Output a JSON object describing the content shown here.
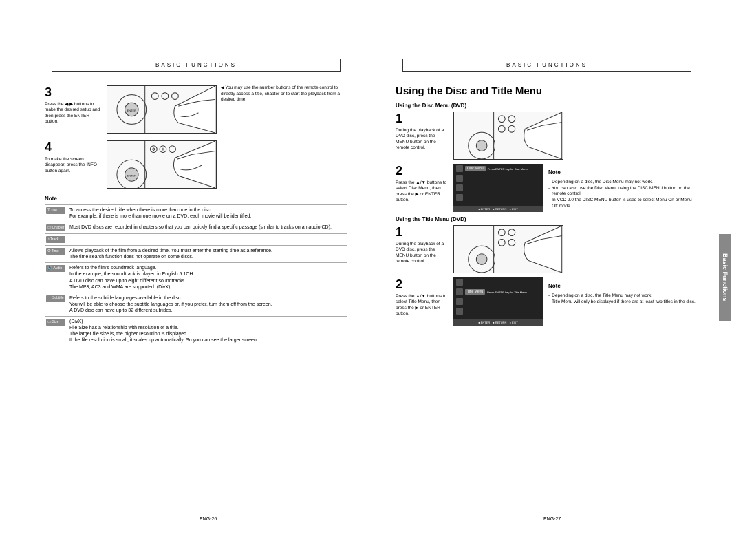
{
  "header": "BASIC FUNCTIONS",
  "sideTab": "Basic Functions",
  "pageLeft": "ENG-26",
  "pageRight": "ENG-27",
  "leftPage": {
    "step3": {
      "num": "3",
      "text": "Press the ◀/▶ buttons to make the desired setup and then press the ENTER button."
    },
    "step3note": "You may use the number buttons of the remote control to directly access a title, chapter or to start the playback from a desired time.",
    "step4": {
      "num": "4",
      "text": "To make the screen disappear, press the INFO button again."
    },
    "noteLabel": "Note",
    "defs": [
      {
        "icon": "Title",
        "glyph": "T",
        "text": "To access the desired title when there is more than one in the disc.\nFor example, if there is more than one movie on a DVD, each movie will be identified."
      },
      {
        "icon": "Chapter",
        "glyph": "▭",
        "text": "Most DVD discs are recorded in chapters so that you can quickly find a specific passage (similar to tracks on an audio CD)."
      },
      {
        "icon": "Track",
        "glyph": "♪",
        "text": ""
      },
      {
        "icon": "Time",
        "glyph": "⏱",
        "text": "Allows playback of the film from a desired time. You must enter the starting time as a reference.\nThe time search function does not operate on some discs."
      },
      {
        "icon": "Audio",
        "glyph": "🔊",
        "text": "Refers to the film's soundtrack language.\nIn the example, the soundtrack is played in English 5.1CH.\nA DVD disc can have up to eight different soundtracks.\nThe MP3, AC3 and WMA are supported. (DivX)"
      },
      {
        "icon": "Subtitle",
        "glyph": "…",
        "text": "Refers to the subtitle languages available in the disc.\nYou will be able to choose the subtitle languages or, if you prefer, turn them off from the screen.\nA DVD disc can have up to 32 different subtitles."
      },
      {
        "icon": "Size",
        "glyph": "▭",
        "text": "(DivX)\nFile Size has a relationship with resolution of a title.\nThe larger file size is, the higher resolution is displayed.\nIf the file resolution is small, it scales up automatically. So you can see the larger screen."
      }
    ]
  },
  "rightPage": {
    "title": "Using the Disc and Title Menu",
    "discMenu": {
      "heading": "Using the Disc Menu (DVD)",
      "step1": {
        "num": "1",
        "text": "During the playback of a DVD disc, press the MENU button on the remote control."
      },
      "step2": {
        "num": "2",
        "text": "Press the ▲/▼ buttons to select Disc Menu, then press the ▶ or ENTER button."
      },
      "screen": {
        "label": "Disc Menu",
        "msg": "Press ENTER key for Disc Menu",
        "bottom": [
          "ENTER",
          "RETURN",
          "EXIT"
        ]
      },
      "noteLabel": "Note",
      "notes": [
        "Depending on a disc, the Disc Menu may not work.",
        "You can also use the Disc Menu, using the DISC MENU button on the remote control.",
        "In VCD 2.0 the DISC MENU button is used to select Menu On or Menu Off mode."
      ]
    },
    "titleMenu": {
      "heading": "Using the Title Menu (DVD)",
      "step1": {
        "num": "1",
        "text": "During the playback of a DVD disc, press the MENU button on the remote control."
      },
      "step2": {
        "num": "2",
        "text": "Press the ▲/▼ buttons to select Title Menu, then press the ▶ or ENTER button."
      },
      "screen": {
        "label": "Title Menu",
        "msg": "Press ENTER key for Title Menu",
        "bottom": [
          "ENTER",
          "RETURN",
          "EXIT"
        ]
      },
      "noteLabel": "Note",
      "notes": [
        "Depending on a disc, the Title Menu may not work.",
        "Title Menu will only be displayed if there are at least two titles in the disc."
      ]
    }
  }
}
